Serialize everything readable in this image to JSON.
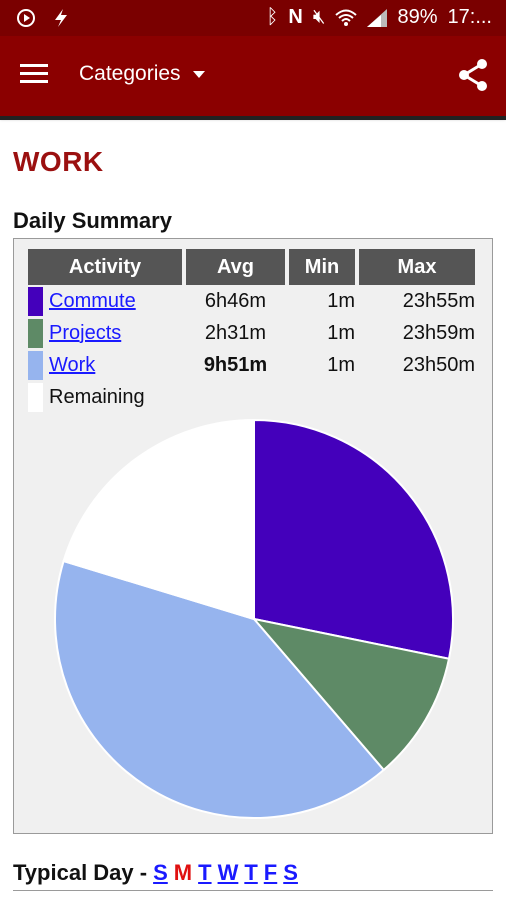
{
  "status_bar": {
    "battery": "89%",
    "time": "17:..."
  },
  "app_bar": {
    "title": "Categories",
    "menu_icon": "hamburger-menu-icon",
    "share_icon": "share-icon"
  },
  "page": {
    "title": "WORK",
    "summary_heading": "Daily Summary"
  },
  "summary_table": {
    "headers": [
      "Activity",
      "Avg",
      "Min",
      "Max"
    ],
    "rows": [
      {
        "activity": "Commute",
        "avg": "6h46m",
        "min": "1m",
        "max": "23h55m",
        "color": "#4400bb",
        "link": true
      },
      {
        "activity": "Projects",
        "avg": "2h31m",
        "min": "1m",
        "max": "23h59m",
        "color": "#5e8a66",
        "link": true
      },
      {
        "activity": "Work",
        "avg": "9h51m",
        "min": "1m",
        "max": "23h50m",
        "color": "#96b4ee",
        "link": true
      },
      {
        "activity": "Remaining",
        "avg": "",
        "min": "",
        "max": "",
        "color": "#ffffff",
        "link": false
      }
    ]
  },
  "chart_data": {
    "type": "pie",
    "labels": [
      "Commute",
      "Projects",
      "Work",
      "Remaining"
    ],
    "values": [
      28.2,
      10.5,
      41.0,
      20.3
    ],
    "colors": [
      "#4400bb",
      "#5e8a66",
      "#96b4ee",
      "#ffffff"
    ]
  },
  "typical_day": {
    "label": "Typical Day -",
    "days": [
      "S",
      "M",
      "T",
      "W",
      "T",
      "F",
      "S"
    ],
    "current_index": 1
  }
}
